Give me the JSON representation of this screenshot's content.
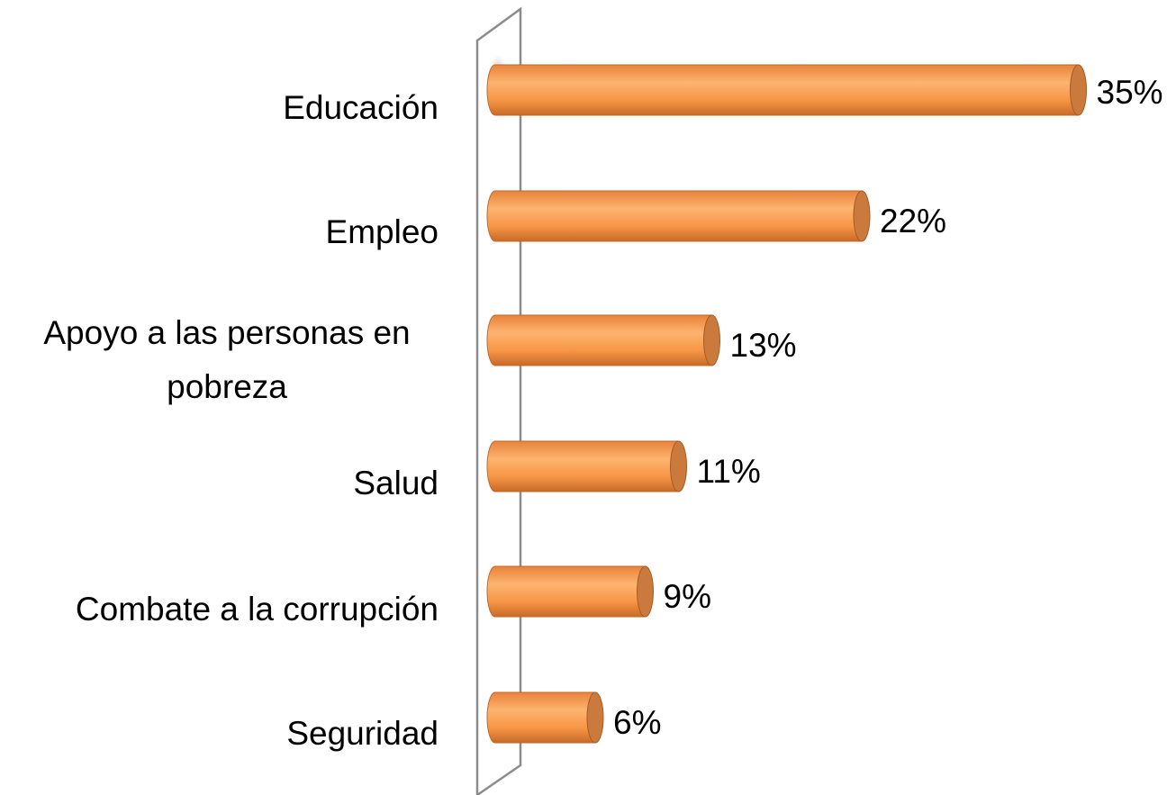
{
  "chart_data": {
    "type": "bar",
    "orientation": "horizontal",
    "categories": [
      "Educación",
      "Empleo",
      "Apoyo a las personas en pobreza",
      "Salud",
      "Combate a la corrupción",
      "Seguridad"
    ],
    "values": [
      35,
      22,
      13,
      11,
      9,
      6
    ],
    "value_labels": [
      "35%",
      "22%",
      "13%",
      "11%",
      "9%",
      "6%"
    ],
    "color": "#f79646"
  }
}
